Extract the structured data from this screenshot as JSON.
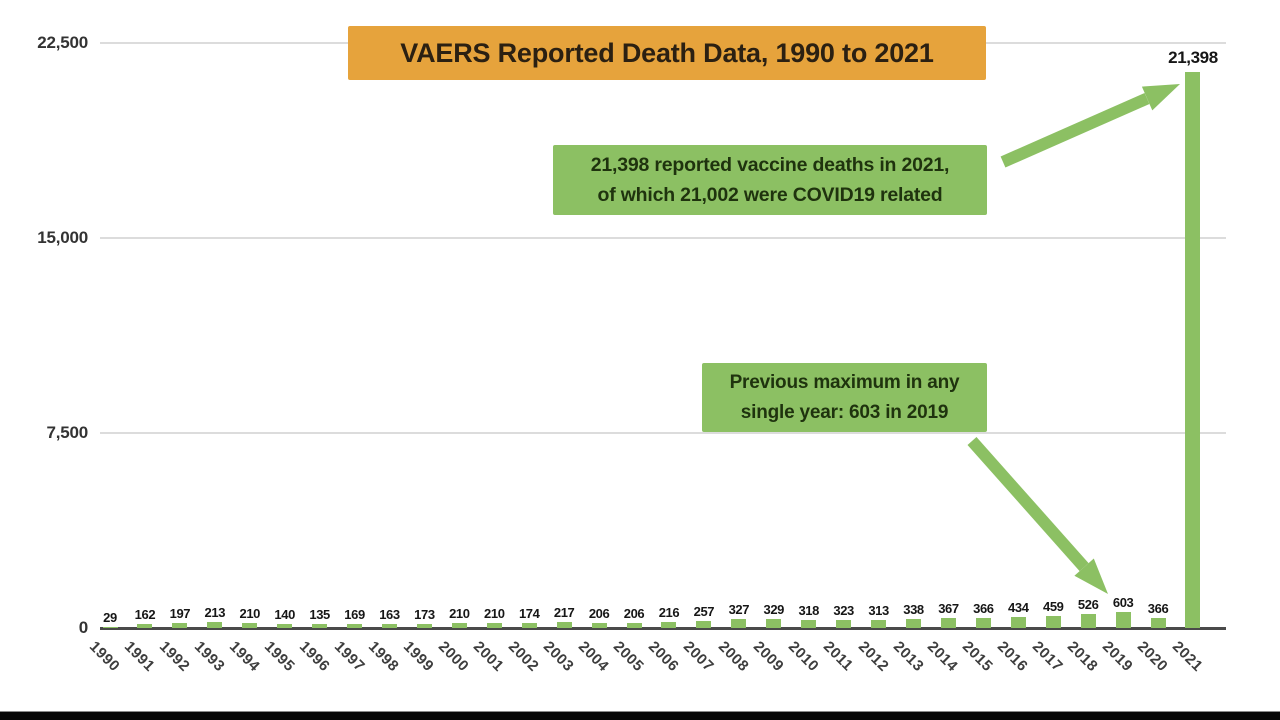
{
  "chart_data": {
    "type": "bar",
    "title": "VAERS Reported Death Data, 1990 to 2021",
    "categories": [
      "1990",
      "1991",
      "1992",
      "1993",
      "1994",
      "1995",
      "1996",
      "1997",
      "1998",
      "1999",
      "2000",
      "2001",
      "2002",
      "2003",
      "2004",
      "2005",
      "2006",
      "2007",
      "2008",
      "2009",
      "2010",
      "2011",
      "2012",
      "2013",
      "2014",
      "2015",
      "2016",
      "2017",
      "2018",
      "2019",
      "2020",
      "2021"
    ],
    "values": [
      29,
      162,
      197,
      213,
      210,
      140,
      135,
      169,
      163,
      173,
      210,
      210,
      174,
      217,
      206,
      206,
      216,
      257,
      327,
      329,
      318,
      323,
      313,
      338,
      367,
      366,
      434,
      459,
      526,
      603,
      366,
      21398
    ],
    "xlabel": "",
    "ylabel": "",
    "ylim": [
      0,
      22500
    ],
    "yticks": [
      0,
      7500,
      15000,
      22500
    ],
    "ytick_labels": [
      "0",
      "7,500",
      "15,000",
      "22,500"
    ],
    "grid": true,
    "legend_position": "none",
    "peak_value_label": "21,398",
    "annotations": [
      {
        "target": "2021 bar",
        "lines": [
          "21,398 reported vaccine deaths in 2021,",
          "of which 21,002 were COVID19 related"
        ]
      },
      {
        "target": "2019 bar",
        "lines": [
          "Previous maximum in any",
          "single year: 603 in 2019"
        ]
      }
    ]
  },
  "colors": {
    "title_bg": "#E6A33C",
    "annotation_bg": "#8CC063",
    "bar": "#8CC063",
    "arrow": "#8CC063",
    "gridline": "#DCDCDC",
    "axis_line": "#4A4A4A",
    "title_text": "#2B2012",
    "annotation_text": "#1F330E",
    "letterbox": "#070707"
  }
}
